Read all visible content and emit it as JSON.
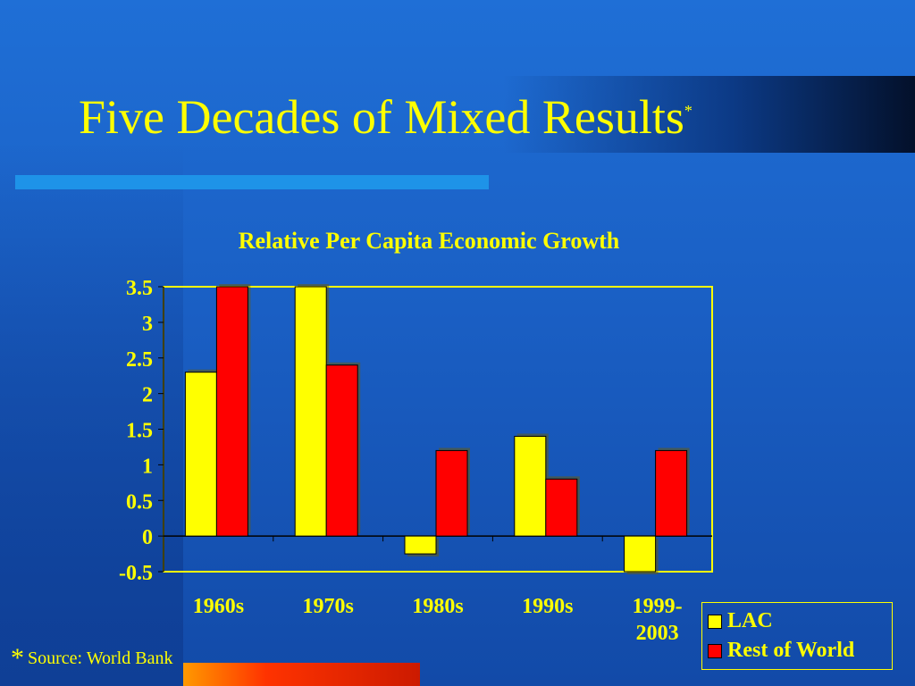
{
  "slide": {
    "title": "Five Decades of Mixed Results",
    "title_marker": "*",
    "footnote_marker": "*",
    "footnote": "Source: World Bank"
  },
  "colors": {
    "background": "#1a5fc4",
    "text": "#ffff00",
    "lac": "#ffff00",
    "row": "#ff0000"
  },
  "chart_data": {
    "type": "bar",
    "title": "Relative Per Capita Economic Growth",
    "categories": [
      "1960s",
      "1970s",
      "1980s",
      "1990s",
      "1999-2003"
    ],
    "category_lines": [
      [
        "1960s"
      ],
      [
        "1970s"
      ],
      [
        "1980s"
      ],
      [
        "1990s"
      ],
      [
        "1999-",
        "2003"
      ]
    ],
    "series": [
      {
        "name": "LAC",
        "color": "#ffff00",
        "values": [
          2.3,
          3.5,
          -0.25,
          1.4,
          -0.5
        ]
      },
      {
        "name": "Rest of World",
        "color": "#ff0000",
        "values": [
          3.5,
          2.4,
          1.2,
          0.8,
          1.2
        ]
      }
    ],
    "ylim": [
      -0.5,
      3.5
    ],
    "yticks": [
      "-0.5",
      "0",
      "0.5",
      "1",
      "1.5",
      "2",
      "2.5",
      "3",
      "3.5"
    ],
    "grid": false,
    "legend_position": "bottom-right"
  }
}
